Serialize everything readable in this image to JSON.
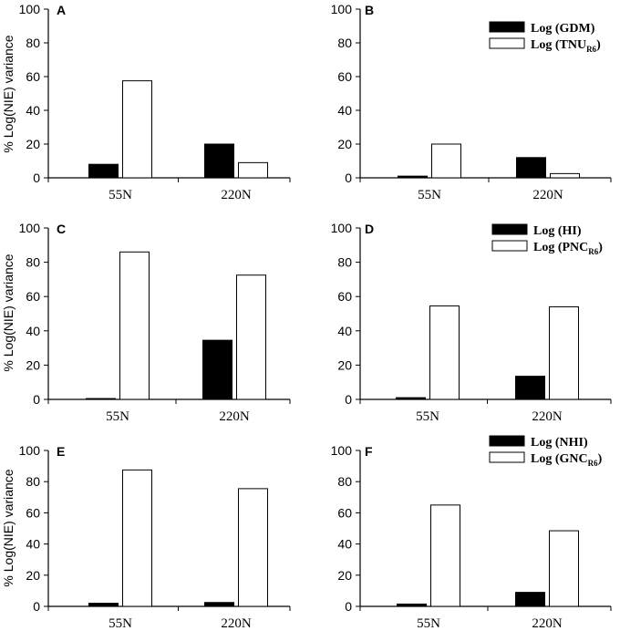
{
  "chart_data": [
    {
      "panel": "A",
      "type": "bar",
      "categories": [
        "55N",
        "220N"
      ],
      "series": [
        {
          "name": "Log (GDM)",
          "fill": "#000000",
          "values": [
            8,
            20
          ]
        },
        {
          "name": "Log (TNU_R6)",
          "fill": "#ffffff",
          "values": [
            57.5,
            9
          ]
        }
      ],
      "ylabel": "% Log(NIE) variance",
      "ylim": [
        0,
        100
      ],
      "yticks": [
        "0",
        "20",
        "40",
        "60",
        "80",
        "100"
      ],
      "legend": null
    },
    {
      "panel": "B",
      "type": "bar",
      "categories": [
        "55N",
        "220N"
      ],
      "series": [
        {
          "name": "Log (GDM)",
          "fill": "#000000",
          "values": [
            1,
            12
          ]
        },
        {
          "name": "Log (TNU_R6)",
          "fill": "#ffffff",
          "values": [
            20,
            2.5
          ]
        }
      ],
      "ylabel": "",
      "ylim": [
        0,
        100
      ],
      "yticks": [
        "0",
        "20",
        "40",
        "60",
        "80",
        "100"
      ],
      "legend": {
        "main": [
          "Log (GDM)",
          "Log (TNU"
        ],
        "sub": [
          "",
          "R6"
        ],
        "tail": [
          "",
          ")"
        ]
      }
    },
    {
      "panel": "C",
      "type": "bar",
      "categories": [
        "55N",
        "220N"
      ],
      "series": [
        {
          "name": "Log (HI)",
          "fill": "#000000",
          "values": [
            0.5,
            34.5
          ]
        },
        {
          "name": "Log (PNC_R6)",
          "fill": "#ffffff",
          "values": [
            86,
            72.5
          ]
        }
      ],
      "ylabel": "% Log(NIE) variance",
      "ylim": [
        0,
        100
      ],
      "yticks": [
        "0",
        "20",
        "40",
        "60",
        "80",
        "100"
      ],
      "legend": null
    },
    {
      "panel": "D",
      "type": "bar",
      "categories": [
        "55N",
        "220N"
      ],
      "series": [
        {
          "name": "Log (HI)",
          "fill": "#000000",
          "values": [
            1,
            13.5
          ]
        },
        {
          "name": "Log (PNC_R6)",
          "fill": "#ffffff",
          "values": [
            54.5,
            54
          ]
        }
      ],
      "ylabel": "",
      "ylim": [
        0,
        100
      ],
      "yticks": [
        "0",
        "20",
        "40",
        "60",
        "80",
        "100"
      ],
      "legend": {
        "main": [
          "Log (HI)",
          "Log (PNC"
        ],
        "sub": [
          "",
          "R6"
        ],
        "tail": [
          "",
          ")"
        ]
      }
    },
    {
      "panel": "E",
      "type": "bar",
      "categories": [
        "55N",
        "220N"
      ],
      "series": [
        {
          "name": "Log (NHI)",
          "fill": "#000000",
          "values": [
            2,
            2.5
          ]
        },
        {
          "name": "Log (GNC_R6)",
          "fill": "#ffffff",
          "values": [
            87.5,
            75.5
          ]
        }
      ],
      "ylabel": "% Log(NIE) variance",
      "ylim": [
        0,
        100
      ],
      "yticks": [
        "0",
        "20",
        "40",
        "60",
        "80",
        "100"
      ],
      "legend": null
    },
    {
      "panel": "F",
      "type": "bar",
      "categories": [
        "55N",
        "220N"
      ],
      "series": [
        {
          "name": "Log (NHI)",
          "fill": "#000000",
          "values": [
            1.5,
            9
          ]
        },
        {
          "name": "Log (GNC_R6)",
          "fill": "#ffffff",
          "values": [
            65,
            48.5
          ]
        }
      ],
      "ylabel": "",
      "ylim": [
        0,
        100
      ],
      "yticks": [
        "0",
        "20",
        "40",
        "60",
        "80",
        "100"
      ],
      "legend": {
        "main": [
          "Log (NHI)",
          "Log (GNC"
        ],
        "sub": [
          "",
          "R6"
        ],
        "tail": [
          "",
          ")"
        ]
      }
    }
  ]
}
